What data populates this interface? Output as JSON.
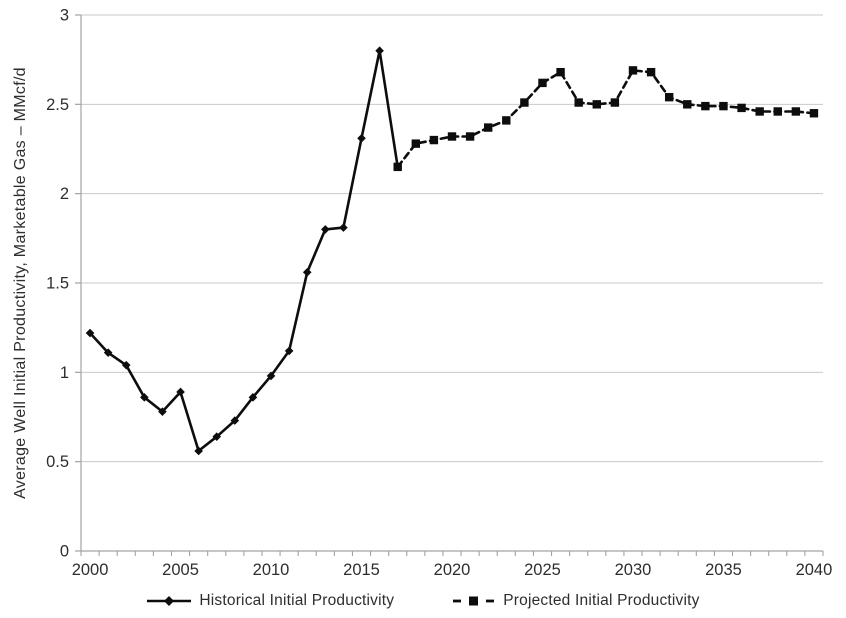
{
  "chart_data": {
    "type": "line",
    "title": "",
    "xlabel": "",
    "ylabel": "Average Well Initial Productivity, Marketable Gas – MMcf/d",
    "xlim": [
      2000,
      2040
    ],
    "ylim": [
      0,
      3
    ],
    "grid": "horizontal",
    "legend_position": "bottom",
    "x_tick_interval_years": 1,
    "x_tick_labels": [
      "2000",
      "2005",
      "2010",
      "2015",
      "2020",
      "2025",
      "2030",
      "2035",
      "2040"
    ],
    "x_tick_label_years": [
      2000,
      2005,
      2010,
      2015,
      2020,
      2025,
      2030,
      2035,
      2040
    ],
    "y_tick_values": [
      0,
      0.5,
      1,
      1.5,
      2,
      2.5,
      3
    ],
    "y_tick_labels": [
      "0",
      "0.5",
      "1",
      "1.5",
      "2",
      "2.5",
      "3"
    ],
    "series": [
      {
        "name": "Historical Initial Productivity",
        "line_style": "solid",
        "marker": "diamond",
        "x": [
          2000,
          2001,
          2002,
          2003,
          2004,
          2005,
          2006,
          2007,
          2008,
          2009,
          2010,
          2011,
          2012,
          2013,
          2014,
          2015,
          2016,
          2017
        ],
        "values": [
          1.22,
          1.11,
          1.04,
          0.86,
          0.78,
          0.89,
          0.56,
          0.64,
          0.73,
          0.86,
          0.98,
          1.12,
          1.56,
          1.8,
          1.81,
          2.31,
          2.8,
          2.15
        ]
      },
      {
        "name": "Projected Initial Productivity",
        "line_style": "dashed",
        "marker": "square",
        "x": [
          2017,
          2018,
          2019,
          2020,
          2021,
          2022,
          2023,
          2024,
          2025,
          2026,
          2027,
          2028,
          2029,
          2030,
          2031,
          2032,
          2033,
          2034,
          2035,
          2036,
          2037,
          2038,
          2039,
          2040
        ],
        "values": [
          2.15,
          2.28,
          2.3,
          2.32,
          2.32,
          2.37,
          2.41,
          2.51,
          2.62,
          2.68,
          2.51,
          2.5,
          2.51,
          2.69,
          2.68,
          2.54,
          2.5,
          2.49,
          2.49,
          2.48,
          2.46,
          2.46,
          2.46,
          2.45
        ]
      }
    ]
  },
  "colors": {
    "series": "#0d0d0d",
    "gridline": "#c9c9c9",
    "axis": "#a3a3a3",
    "text": "#2e2e2e"
  }
}
